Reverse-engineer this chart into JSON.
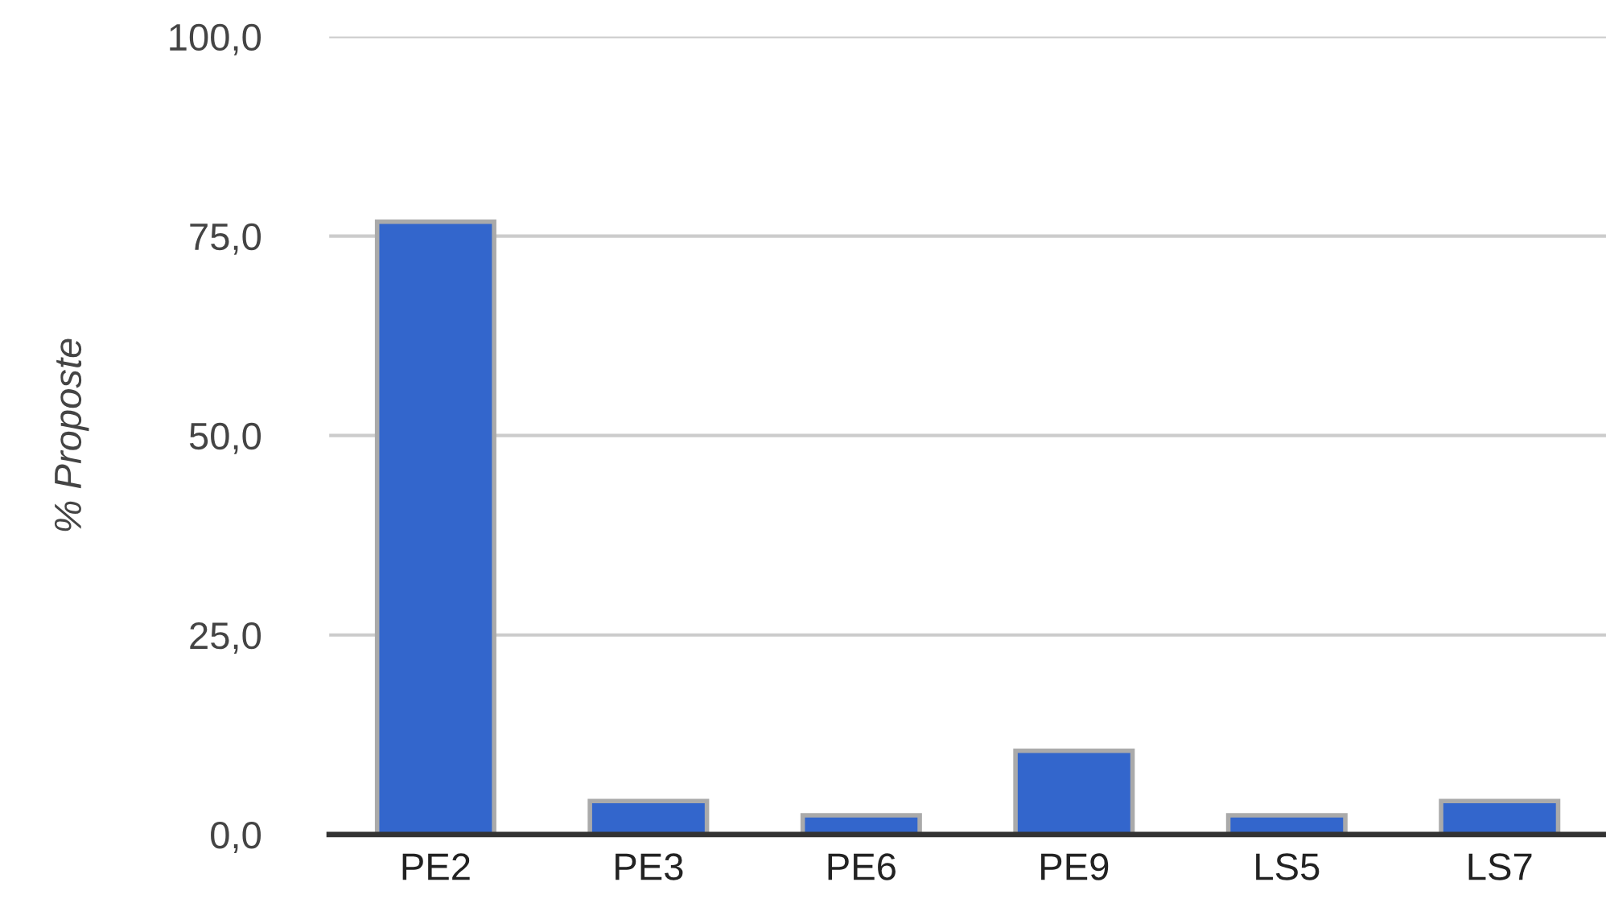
{
  "chart_data": {
    "type": "bar",
    "ylabel": "% Proposte",
    "categories": [
      "PE2",
      "PE3",
      "PE6",
      "PE9",
      "LS5",
      "LS7"
    ],
    "values": [
      76.8,
      4.2,
      2.4,
      10.5,
      2.4,
      4.2
    ],
    "color": "#3366cc",
    "ylim": [
      0,
      100
    ],
    "yticks": [
      {
        "value": 0,
        "label": "0,0"
      },
      {
        "value": 25,
        "label": "25,0"
      },
      {
        "value": 50,
        "label": "50,0"
      },
      {
        "value": 75,
        "label": "75,0"
      },
      {
        "value": 100,
        "label": "100,0"
      }
    ],
    "grid": "y"
  }
}
